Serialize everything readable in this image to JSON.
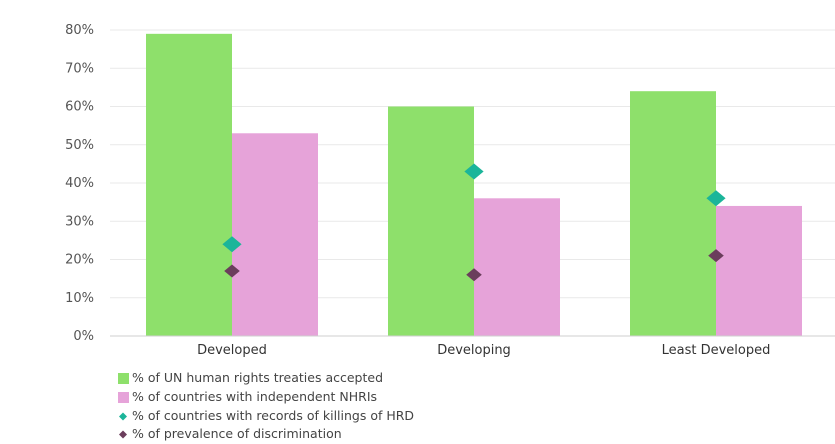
{
  "chart_data": {
    "type": "bar",
    "title": "",
    "xlabel": "",
    "ylabel": "",
    "ylim": [
      0,
      80
    ],
    "yticks": [
      {
        "value": 0,
        "label": "0%"
      },
      {
        "value": 10,
        "label": "10%"
      },
      {
        "value": 20,
        "label": "20%"
      },
      {
        "value": 30,
        "label": "30%"
      },
      {
        "value": 40,
        "label": "40%"
      },
      {
        "value": 50,
        "label": "50%"
      },
      {
        "value": 60,
        "label": "60%"
      },
      {
        "value": 70,
        "label": "70%"
      },
      {
        "value": 80,
        "label": "80%"
      }
    ],
    "grid": true,
    "legend_position": "bottom-left",
    "categories": [
      "Developed",
      "Developing",
      "Least Developed"
    ],
    "series": [
      {
        "name": "% of UN human rights treaties accepted",
        "kind": "bar",
        "color": "#8ee06b",
        "values": [
          79,
          60,
          64
        ]
      },
      {
        "name": "% of countries with independent NHRIs",
        "kind": "bar",
        "color": "#e6a3d9",
        "values": [
          53,
          36,
          34
        ]
      },
      {
        "name": "% of countries with records of killings of HRD",
        "kind": "marker",
        "color": "#1bb59a",
        "values": [
          24,
          43,
          36
        ]
      },
      {
        "name": "% of prevalence of discrimination",
        "kind": "marker",
        "color": "#6b3d5c",
        "values": [
          17,
          16,
          21
        ]
      }
    ]
  }
}
